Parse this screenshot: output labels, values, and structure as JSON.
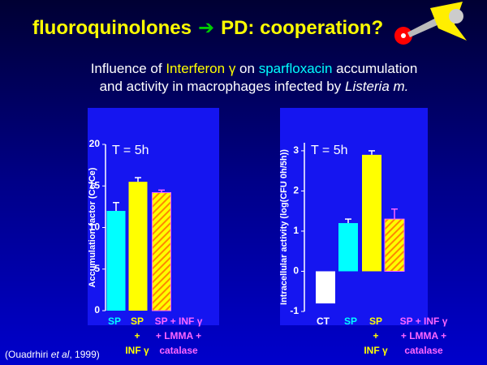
{
  "title": [
    "fluoroquinolones",
    "➔",
    "PD: cooperation?"
  ],
  "subtitle": [
    [
      "Influence of ",
      "Interferon γ",
      " on ",
      "sparfloxacin",
      " accumulation"
    ],
    [
      "and activity in macrophages infected by ",
      "Listeria m."
    ]
  ],
  "citation": [
    "(Ouadrhiri ",
    "et al",
    ", 1999)"
  ],
  "chart_data": [
    {
      "type": "bar",
      "annotation": "T = 5h",
      "ylabel": "Accumulation factor (Cc/Ce)",
      "categories": [
        [
          "SP"
        ],
        [
          "SP",
          "+",
          "INF γ"
        ],
        [
          "SP + INF γ",
          "+ LMMA +",
          "catalase"
        ]
      ],
      "values": [
        12,
        15.5,
        14.2
      ],
      "errors": [
        1,
        0.5,
        0.3
      ],
      "colors": [
        "#00ffff",
        "#ffff00",
        "#ffff00"
      ],
      "hatched": [
        false,
        false,
        true
      ],
      "label_colors": [
        "#00ffff",
        "#ffff00",
        "#ff66ff"
      ],
      "error_colors": [
        "#ffffff",
        "#ffffff",
        "#ff66ff"
      ],
      "ylim": [
        0,
        20
      ],
      "yticks": [
        0,
        5,
        10,
        15,
        20
      ]
    },
    {
      "type": "bar",
      "annotation": "T = 5h",
      "ylabel": "Intracellular activity (log(CFU 0h/5h))",
      "categories": [
        [
          "CT"
        ],
        [
          "SP"
        ],
        [
          "SP",
          "+",
          "INF γ"
        ],
        [
          "SP + INF γ",
          "+ LMMA +",
          "catalase"
        ]
      ],
      "values": [
        -0.8,
        1.2,
        2.9,
        1.3
      ],
      "errors": [
        0,
        0.1,
        0.1,
        0.25
      ],
      "colors": [
        "#ffffff",
        "#00ffff",
        "#ffff00",
        "#ffff00"
      ],
      "hatched": [
        false,
        false,
        false,
        true
      ],
      "label_colors": [
        "#ffffff",
        "#00ffff",
        "#ffff00",
        "#ff66ff"
      ],
      "error_colors": [
        "#ffffff",
        "#ffffff",
        "#ffffff",
        "#ff66ff"
      ],
      "ylim": [
        -1,
        3.2
      ],
      "yticks": [
        -1,
        0,
        1,
        2,
        3
      ]
    }
  ]
}
